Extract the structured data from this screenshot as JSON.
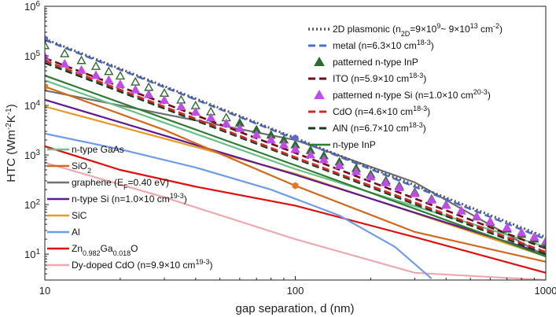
{
  "chart_data": {
    "type": "line",
    "xscale": "log",
    "yscale": "log",
    "xlim": [
      10,
      1000
    ],
    "ylim": [
      3,
      1000000
    ],
    "xlabel": "gap separation, d (nm)",
    "ylabel_main": "HTC (Wm",
    "ylabel_sup1": "-2",
    "ylabel_mid": "K",
    "ylabel_sup2": "-1",
    "ylabel_end": ")",
    "xticks": [
      {
        "value": 10,
        "label": "10"
      },
      {
        "value": 100,
        "label": "100"
      },
      {
        "value": 1000,
        "label": "1000"
      }
    ],
    "yticks": [
      {
        "value": 10,
        "base": "10",
        "exp": "1"
      },
      {
        "value": 100,
        "base": "10",
        "exp": "2"
      },
      {
        "value": 1000,
        "base": "10",
        "exp": "3"
      },
      {
        "value": 10000,
        "base": "10",
        "exp": "4"
      },
      {
        "value": 100000,
        "base": "10",
        "exp": "5"
      },
      {
        "value": 1000000,
        "base": "10",
        "exp": "6"
      }
    ],
    "series": [
      {
        "id": "plasmonic",
        "name": "2D plasmonic (n2D=9×10^9~ 9×10^13 cm^-2)",
        "style": "dotted",
        "color": "#555566",
        "x": [
          10,
          100,
          1000
        ],
        "y": [
          220000,
          2200,
          22
        ]
      },
      {
        "id": "metal",
        "name": "metal (n=6.3×10^18 cm^-3)",
        "style": "dashed",
        "color": "#4a6fd0",
        "x": [
          10,
          100,
          1000
        ],
        "y": [
          210000,
          2100,
          20
        ]
      },
      {
        "id": "pat_inp",
        "name": "patterned n-type InP",
        "style": "triangles",
        "color": "#2e6b2e",
        "x": [
          10,
          12,
          14,
          16,
          18,
          20,
          23,
          26,
          30,
          35,
          40,
          46,
          53,
          60,
          70,
          80,
          90,
          100,
          115,
          130,
          150,
          175,
          200,
          230,
          260,
          300,
          350,
          400,
          460,
          530,
          600,
          700,
          800,
          900,
          1000
        ],
        "y": [
          160000,
          110000,
          80000,
          61000,
          48000,
          39000,
          29500,
          23000,
          17500,
          12800,
          9800,
          7400,
          5600,
          4400,
          3200,
          2500,
          2000,
          1600,
          1230,
          960,
          720,
          530,
          400,
          300,
          235,
          176,
          128,
          98,
          74,
          56,
          44,
          32,
          25,
          20,
          16
        ]
      },
      {
        "id": "ito",
        "name": "ITO (n=5.9×10^18 cm^-3)",
        "style": "dashed",
        "color": "#6b0d1a",
        "x": [
          10,
          100,
          1000
        ],
        "y": [
          90000,
          1100,
          13
        ]
      },
      {
        "id": "pat_si",
        "name": "patterned n-type Si (n=1.0×10^20 cm^-3)",
        "style": "triangles",
        "color": "#c04de8",
        "x": [
          10,
          12,
          14,
          16,
          18,
          20,
          23,
          26,
          30,
          35,
          40,
          46,
          53,
          60,
          70,
          80,
          90,
          100,
          115,
          130,
          150,
          175,
          200,
          230,
          260,
          300,
          350,
          400,
          460,
          530,
          600,
          700,
          800,
          900,
          1000
        ],
        "y": [
          95000,
          68000,
          51000,
          40000,
          32000,
          26500,
          20500,
          16500,
          12600,
          9400,
          7300,
          5600,
          4300,
          3400,
          2550,
          2000,
          1600,
          1300,
          1000,
          800,
          610,
          460,
          360,
          275,
          218,
          165,
          123,
          96,
          74,
          57,
          45,
          34,
          27,
          22,
          18
        ]
      },
      {
        "id": "cdo",
        "name": "CdO (n=4.6×10^18 cm^-3)",
        "style": "dashed",
        "color": "#d62828",
        "x": [
          10,
          100,
          1000
        ],
        "y": [
          80000,
          900,
          11
        ]
      },
      {
        "id": "aln",
        "name": "AlN (n=6.7×10^18 cm^-3)",
        "style": "dashed",
        "color": "#14401e",
        "x": [
          10,
          100,
          1000
        ],
        "y": [
          72000,
          850,
          10
        ]
      },
      {
        "id": "ninp",
        "name": "n-type InP",
        "style": "solid",
        "color": "#2f7d32",
        "x": [
          10,
          100,
          1000
        ],
        "y": [
          40000,
          620,
          9
        ]
      },
      {
        "id": "gaas",
        "name": "n-type GaAs",
        "style": "solid",
        "color": "#6cc08a",
        "x": [
          10,
          100,
          1000
        ],
        "y": [
          32000,
          520,
          14
        ]
      },
      {
        "id": "sio2",
        "name": "SiO2",
        "style": "solid",
        "color": "#d2691e",
        "x": [
          10,
          30,
          100,
          300,
          1000
        ],
        "y": [
          24000,
          3200,
          240,
          28,
          7
        ]
      },
      {
        "id": "graphene",
        "name": "graphene (EF=0.40 eV)",
        "style": "solid",
        "color": "#707070",
        "x": [
          10,
          20,
          40,
          100,
          300,
          1000
        ],
        "y": [
          20000,
          10000,
          5000,
          2000,
          280,
          9
        ]
      },
      {
        "id": "nsi",
        "name": "n-type Si (n=1.0×10^19 cm^-3)",
        "style": "solid",
        "color": "#5e1a8f",
        "x": [
          10,
          100,
          1000
        ],
        "y": [
          13000,
          400,
          10
        ]
      },
      {
        "id": "sic",
        "name": "SiC",
        "style": "solid",
        "color": "#e89a28",
        "x": [
          10,
          100,
          1000
        ],
        "y": [
          9500,
          420,
          9
        ]
      },
      {
        "id": "al",
        "name": "Al",
        "style": "solid",
        "color": "#6f9be8",
        "x": [
          10,
          20,
          40,
          80,
          150,
          250,
          350
        ],
        "y": [
          2700,
          1300,
          560,
          200,
          60,
          14,
          3.2
        ]
      },
      {
        "id": "zgo",
        "name": "Zn0.982Ga0.018O",
        "style": "solid",
        "color": "#e01010",
        "x": [
          10,
          20,
          40,
          100,
          300,
          1000
        ],
        "y": [
          1500,
          500,
          230,
          95,
          22,
          4.2
        ]
      },
      {
        "id": "dy",
        "name": "Dy-doped CdO (n=9.9×10^19 cm^-3)",
        "style": "solid",
        "color": "#f0a8b0",
        "x": [
          10,
          30,
          100,
          300,
          1000
        ],
        "y": [
          700,
          140,
          20,
          4.2,
          3
        ]
      }
    ],
    "markers": [
      {
        "x": 10,
        "y": 220000,
        "color": "#5b6ecc",
        "shape": "hexagon"
      },
      {
        "x": 10,
        "y": 24000,
        "color": "#e07c28",
        "shape": "hexagon"
      },
      {
        "x": 100,
        "y": 2200,
        "color": "#5b6ecc",
        "shape": "hexagon"
      },
      {
        "x": 100,
        "y": 240,
        "color": "#e07c28",
        "shape": "hexagon"
      }
    ],
    "legend_right": [
      {
        "id": "plasmonic",
        "pre": "2D plasmonic (n",
        "sub": "2D",
        "mid": "=9×10",
        "sup": "9",
        "mid2": "~ 9×10",
        "sup2": "13",
        "mid3": " cm",
        "sup3": "-2",
        "post": ")"
      },
      {
        "id": "metal",
        "pre": "metal (n=6.3×10",
        "sup": "18",
        "mid": " cm",
        "sup2": "-3",
        "post": ")"
      },
      {
        "id": "pat_inp",
        "pre": "patterned n-type InP"
      },
      {
        "id": "ito",
        "pre": "ITO (n=5.9×10",
        "sup": "18",
        "mid": " cm",
        "sup2": "-3",
        "post": ")"
      },
      {
        "id": "pat_si",
        "pre": "patterned n-type Si (n=1.0×10",
        "sup": "20",
        "mid": " cm",
        "sup2": "-3",
        "post": ")"
      },
      {
        "id": "cdo",
        "pre": "CdO (n=4.6×10",
        "sup": "18",
        "mid": " cm",
        "sup2": "-3",
        "post": ")"
      },
      {
        "id": "aln",
        "pre": "AlN (n=6.7×10",
        "sup": "18",
        "mid": " cm",
        "sup2": "-3",
        "post": ")"
      },
      {
        "id": "ninp",
        "pre": "n-type InP"
      }
    ],
    "legend_left": [
      {
        "id": "gaas",
        "pre": "n-type GaAs"
      },
      {
        "id": "sio2",
        "pre": "SiO",
        "sub": "2"
      },
      {
        "id": "graphene",
        "pre": "graphene (E",
        "sub": "F",
        "mid": "=0.40 eV)"
      },
      {
        "id": "nsi",
        "pre": "n-type Si (n=1.0×10",
        "sup": "19",
        "mid": " cm",
        "sup2": "-3",
        "post": ")"
      },
      {
        "id": "sic",
        "pre": "SiC"
      },
      {
        "id": "al",
        "pre": "Al"
      },
      {
        "id": "zgo",
        "pre": "Zn",
        "sub": "0.982",
        "mid": "Ga",
        "sub2": "0.018",
        "post": "O"
      },
      {
        "id": "dy",
        "pre": "Dy-doped CdO (n=9.9×10",
        "sup": "19",
        "mid": " cm",
        "sup2": "-3",
        "post": ")"
      }
    ]
  }
}
